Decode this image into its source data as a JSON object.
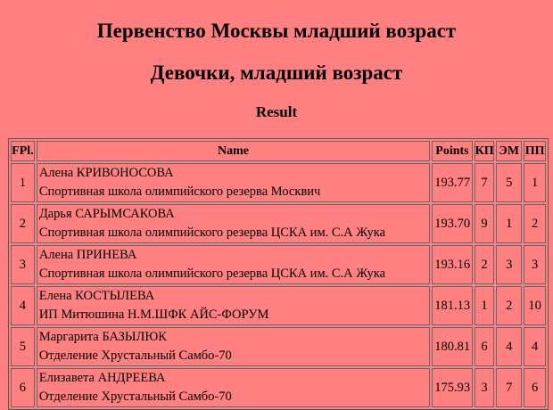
{
  "title": "Первенство Москвы младший возраст",
  "subtitle": "Девочки, младший возраст",
  "section": "Result",
  "table": {
    "headers": [
      "FPl.",
      "Name",
      "Points",
      "КП",
      "ЭМ",
      "ПП"
    ],
    "rows": [
      {
        "place": "1",
        "name": "Алена КРИВОНОСОВА",
        "club": "Спортивная школа олимпийского резерва Москвич",
        "points": "193.77",
        "kp": "7",
        "em": "5",
        "pp": "1"
      },
      {
        "place": "2",
        "name": "Дарья САРЫМСАКОВА",
        "club": "Спортивная школа олимпийского резерва ЦСКА им. С.А Жука",
        "points": "193.70",
        "kp": "9",
        "em": "1",
        "pp": "2"
      },
      {
        "place": "3",
        "name": "Алена ПРИНЕВА",
        "club": "Спортивная школа олимпийского резерва ЦСКА им. С.А Жука",
        "points": "193.16",
        "kp": "2",
        "em": "3",
        "pp": "3"
      },
      {
        "place": "4",
        "name": "Елена КОСТЫЛЕВА",
        "club": "ИП Митюшина Н.М.ШФК АЙС-ФОРУМ",
        "points": "181.13",
        "kp": "1",
        "em": "2",
        "pp": "10"
      },
      {
        "place": "5",
        "name": "Маргарита БАЗЫЛЮК",
        "club": "Отделение Хрустальный Самбо-70",
        "points": "180.81",
        "kp": "6",
        "em": "4",
        "pp": "4"
      },
      {
        "place": "6",
        "name": "Елизавета АНДРЕЕВА",
        "club": "Отделение Хрустальный Самбо-70",
        "points": "175.93",
        "kp": "3",
        "em": "7",
        "pp": "6"
      }
    ]
  }
}
